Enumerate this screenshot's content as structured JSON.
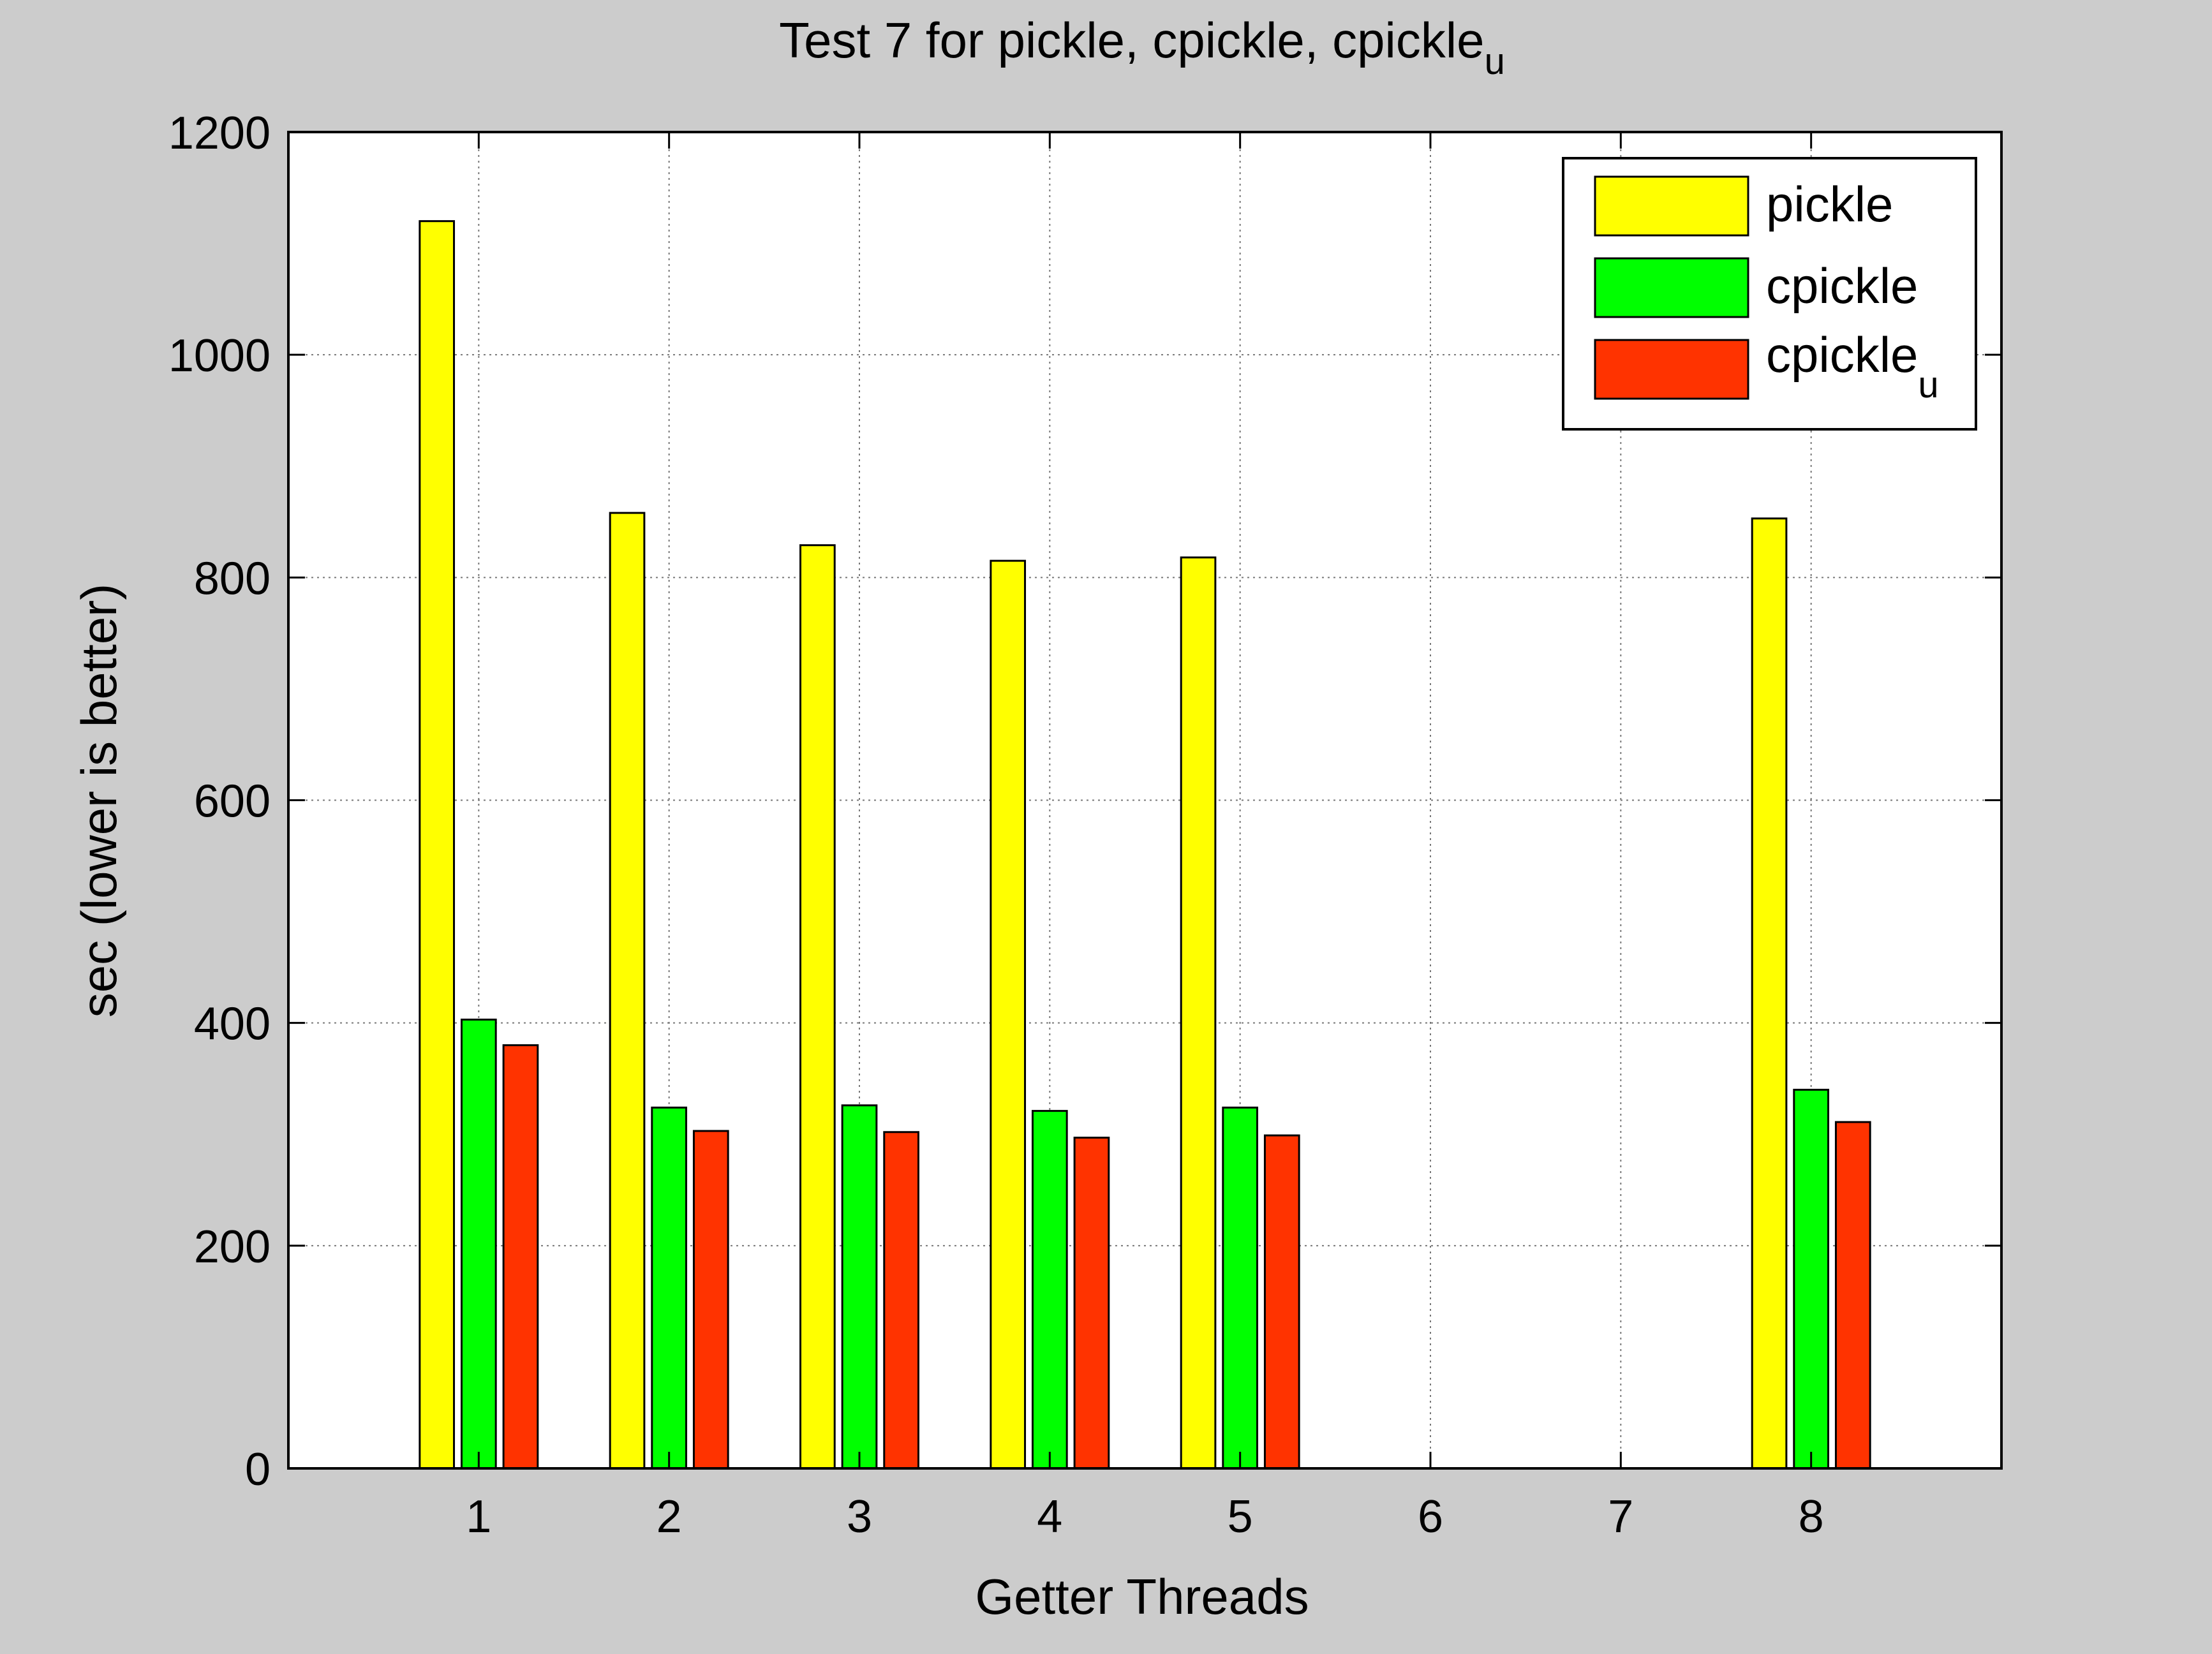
{
  "chart_data": {
    "type": "bar",
    "title": {
      "main": "Test 7 for pickle, cpickle, cpickle",
      "subscript": "u"
    },
    "xlabel": "Getter Threads",
    "ylabel": "sec (lower is better)",
    "categories": [
      "1",
      "2",
      "3",
      "4",
      "5",
      "6",
      "7",
      "8"
    ],
    "x_range": [
      0,
      9
    ],
    "ylim": [
      0,
      1200
    ],
    "yticks": [
      "0",
      "200",
      "400",
      "600",
      "800",
      "1000",
      "1200"
    ],
    "grid": true,
    "legend_position": "top-right",
    "series": [
      {
        "name": "pickle",
        "subscript": "",
        "color": "#ffff00",
        "values": [
          1120,
          858,
          829,
          815,
          818,
          null,
          null,
          853
        ]
      },
      {
        "name": "cpickle",
        "subscript": "",
        "color": "#00ff00",
        "values": [
          403,
          324,
          326,
          321,
          324,
          null,
          null,
          340
        ]
      },
      {
        "name": "cpickle",
        "subscript": "u",
        "color": "#ff3300",
        "values": [
          380,
          303,
          302,
          297,
          299,
          null,
          null,
          311
        ]
      }
    ]
  }
}
